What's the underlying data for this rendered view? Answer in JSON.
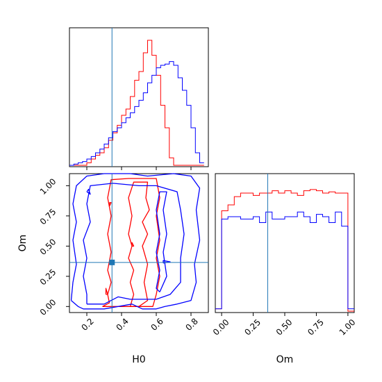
{
  "chart_data": {
    "type": "corner",
    "parameters": [
      "H0",
      "Om"
    ],
    "truth": {
      "H0": 0.345,
      "Om": 0.365
    },
    "colors": {
      "series_a": "#ff0000",
      "series_b": "#0000ff",
      "truth": "#1f77b4"
    },
    "H0_marginal": {
      "xlim": [
        0.1,
        0.9
      ],
      "x_ticks": [
        "0.2",
        "0.4",
        "0.6",
        "0.8"
      ],
      "x_tick_values": [
        0.2,
        0.4,
        0.6,
        0.8
      ],
      "bin_edges": [
        0.1,
        0.125,
        0.15,
        0.175,
        0.2,
        0.225,
        0.25,
        0.275,
        0.3,
        0.325,
        0.35,
        0.375,
        0.4,
        0.425,
        0.45,
        0.475,
        0.5,
        0.525,
        0.55,
        0.575,
        0.6,
        0.625,
        0.65,
        0.675,
        0.7,
        0.725,
        0.75,
        0.775,
        0.8,
        0.825,
        0.85,
        0.875
      ],
      "series": [
        {
          "color": "red",
          "counts": [
            0,
            0,
            0,
            0,
            0.02,
            0.05,
            0.08,
            0.1,
            0.14,
            0.2,
            0.26,
            0.32,
            0.4,
            0.45,
            0.55,
            0.68,
            0.75,
            0.9,
            1.0,
            0.88,
            0.72,
            0.48,
            0.3,
            0.06,
            0,
            0,
            0,
            0,
            0,
            0,
            0
          ]
        },
        {
          "color": "blue",
          "counts": [
            0,
            0.01,
            0.02,
            0.03,
            0.05,
            0.07,
            0.1,
            0.13,
            0.17,
            0.22,
            0.27,
            0.3,
            0.34,
            0.38,
            0.42,
            0.47,
            0.52,
            0.58,
            0.66,
            0.72,
            0.78,
            0.8,
            0.81,
            0.83,
            0.8,
            0.7,
            0.6,
            0.48,
            0.3,
            0.1,
            0.02
          ]
        }
      ]
    },
    "Om_marginal": {
      "xlim": [
        -0.05,
        1.05
      ],
      "x_ticks": [
        "0.00",
        "0.25",
        "0.50",
        "0.75",
        "1.00"
      ],
      "x_tick_values": [
        0.0,
        0.25,
        0.5,
        0.75,
        1.0
      ],
      "bin_edges": [
        -0.05,
        0.0,
        0.05,
        0.1,
        0.15,
        0.2,
        0.25,
        0.3,
        0.35,
        0.4,
        0.45,
        0.5,
        0.55,
        0.6,
        0.65,
        0.7,
        0.75,
        0.8,
        0.85,
        0.9,
        0.95,
        1.0,
        1.05
      ],
      "series": [
        {
          "color": "red",
          "counts": [
            0.02,
            0.85,
            0.9,
            0.97,
            1.0,
            1.0,
            0.98,
            1.0,
            1.0,
            1.02,
            1.0,
            1.02,
            1.0,
            0.98,
            1.02,
            1.03,
            1.02,
            1.0,
            1.01,
            1.0,
            1.0,
            0.0
          ]
        },
        {
          "color": "blue",
          "counts": [
            0.02,
            0.78,
            0.8,
            0.8,
            0.78,
            0.78,
            0.8,
            0.75,
            0.84,
            0.78,
            0.78,
            0.8,
            0.8,
            0.84,
            0.8,
            0.75,
            0.82,
            0.8,
            0.75,
            0.84,
            0.72,
            0.02
          ]
        }
      ]
    },
    "joint": {
      "xlim": [
        0.1,
        0.9
      ],
      "ylim": [
        -0.05,
        1.1
      ],
      "x_ticks": [
        "0.2",
        "0.4",
        "0.6",
        "0.8"
      ],
      "x_tick_values": [
        0.2,
        0.4,
        0.6,
        0.8
      ],
      "y_ticks": [
        "0.00",
        "0.25",
        "0.50",
        "0.75",
        "1.00"
      ],
      "y_tick_values": [
        0.0,
        0.25,
        0.5,
        0.75,
        1.0
      ],
      "xlabel": "H0",
      "ylabel": "Om",
      "contours": [
        {
          "color": "red",
          "points": [
            [
              0.29,
              0.0
            ],
            [
              0.33,
              0.03
            ],
            [
              0.32,
              0.1
            ],
            [
              0.34,
              0.2
            ],
            [
              0.32,
              0.3
            ],
            [
              0.34,
              0.45
            ],
            [
              0.32,
              0.6
            ],
            [
              0.34,
              0.75
            ],
            [
              0.32,
              0.9
            ],
            [
              0.34,
              1.05
            ],
            [
              0.44,
              1.06
            ],
            [
              0.52,
              1.06
            ],
            [
              0.6,
              1.06
            ],
            [
              0.62,
              0.9
            ],
            [
              0.6,
              0.75
            ],
            [
              0.62,
              0.55
            ],
            [
              0.6,
              0.4
            ],
            [
              0.62,
              0.25
            ],
            [
              0.6,
              0.1
            ],
            [
              0.58,
              0.0
            ],
            [
              0.45,
              0.0
            ],
            [
              0.29,
              0.0
            ]
          ]
        },
        {
          "color": "red",
          "points": [
            [
              0.45,
              0.0
            ],
            [
              0.47,
              0.1
            ],
            [
              0.45,
              0.2
            ],
            [
              0.47,
              0.3
            ],
            [
              0.44,
              0.4
            ],
            [
              0.46,
              0.5
            ],
            [
              0.44,
              0.6
            ],
            [
              0.46,
              0.75
            ],
            [
              0.44,
              0.9
            ],
            [
              0.47,
              1.03
            ],
            [
              0.55,
              1.03
            ],
            [
              0.54,
              0.9
            ],
            [
              0.56,
              0.8
            ],
            [
              0.52,
              0.7
            ],
            [
              0.55,
              0.6
            ],
            [
              0.52,
              0.5
            ],
            [
              0.55,
              0.35
            ],
            [
              0.53,
              0.2
            ],
            [
              0.55,
              0.05
            ],
            [
              0.5,
              0.0
            ],
            [
              0.45,
              0.0
            ]
          ]
        },
        {
          "color": "red",
          "points": [
            [
              0.31,
              0.1
            ],
            [
              0.31,
              0.15
            ],
            [
              0.32,
              0.1
            ],
            [
              0.31,
              0.1
            ]
          ]
        },
        {
          "color": "red",
          "points": [
            [
              0.33,
              0.86
            ],
            [
              0.33,
              0.83
            ],
            [
              0.34,
              0.86
            ],
            [
              0.33,
              0.86
            ]
          ]
        },
        {
          "color": "red",
          "points": [
            [
              0.46,
              0.5
            ],
            [
              0.46,
              0.53
            ],
            [
              0.47,
              0.5
            ],
            [
              0.46,
              0.5
            ]
          ]
        },
        {
          "color": "blue",
          "points": [
            [
              0.11,
              0.05
            ],
            [
              0.15,
              0.0
            ],
            [
              0.18,
              -0.02
            ],
            [
              0.3,
              -0.02
            ],
            [
              0.38,
              0.0
            ],
            [
              0.46,
              0.02
            ],
            [
              0.52,
              -0.02
            ],
            [
              0.6,
              -0.02
            ],
            [
              0.65,
              0.0
            ],
            [
              0.72,
              0.02
            ],
            [
              0.8,
              0.05
            ],
            [
              0.83,
              0.2
            ],
            [
              0.82,
              0.35
            ],
            [
              0.85,
              0.55
            ],
            [
              0.83,
              0.8
            ],
            [
              0.85,
              0.98
            ],
            [
              0.8,
              1.08
            ],
            [
              0.7,
              1.1
            ],
            [
              0.55,
              1.08
            ],
            [
              0.45,
              1.1
            ],
            [
              0.3,
              1.1
            ],
            [
              0.2,
              1.08
            ],
            [
              0.14,
              1.0
            ],
            [
              0.12,
              0.85
            ],
            [
              0.14,
              0.7
            ],
            [
              0.12,
              0.55
            ],
            [
              0.14,
              0.35
            ],
            [
              0.12,
              0.2
            ],
            [
              0.11,
              0.05
            ]
          ]
        },
        {
          "color": "blue",
          "points": [
            [
              0.2,
              0.02
            ],
            [
              0.3,
              0.02
            ],
            [
              0.38,
              0.08
            ],
            [
              0.45,
              0.06
            ],
            [
              0.6,
              0.06
            ],
            [
              0.68,
              0.1
            ],
            [
              0.74,
              0.2
            ],
            [
              0.74,
              0.4
            ],
            [
              0.76,
              0.6
            ],
            [
              0.74,
              0.8
            ],
            [
              0.72,
              0.95
            ],
            [
              0.6,
              1.0
            ],
            [
              0.5,
              1.0
            ],
            [
              0.35,
              1.02
            ],
            [
              0.22,
              1.0
            ],
            [
              0.2,
              0.85
            ],
            [
              0.22,
              0.7
            ],
            [
              0.18,
              0.55
            ],
            [
              0.2,
              0.4
            ],
            [
              0.18,
              0.25
            ],
            [
              0.2,
              0.1
            ],
            [
              0.2,
              0.02
            ]
          ]
        },
        {
          "color": "blue",
          "points": [
            [
              0.62,
              0.12
            ],
            [
              0.66,
              0.25
            ],
            [
              0.64,
              0.45
            ],
            [
              0.66,
              0.6
            ],
            [
              0.64,
              0.8
            ],
            [
              0.66,
              0.95
            ],
            [
              0.62,
              0.95
            ],
            [
              0.6,
              0.8
            ],
            [
              0.62,
              0.6
            ],
            [
              0.6,
              0.45
            ],
            [
              0.62,
              0.3
            ],
            [
              0.6,
              0.15
            ],
            [
              0.62,
              0.12
            ]
          ]
        },
        {
          "color": "blue",
          "points": [
            [
              0.2,
              0.95
            ],
            [
              0.22,
              0.93
            ],
            [
              0.21,
              0.97
            ],
            [
              0.2,
              0.95
            ]
          ]
        },
        {
          "color": "blue",
          "points": [
            [
              0.64,
              0.36
            ],
            [
              0.68,
              0.37
            ],
            [
              0.64,
              0.38
            ],
            [
              0.64,
              0.36
            ]
          ]
        }
      ]
    }
  }
}
